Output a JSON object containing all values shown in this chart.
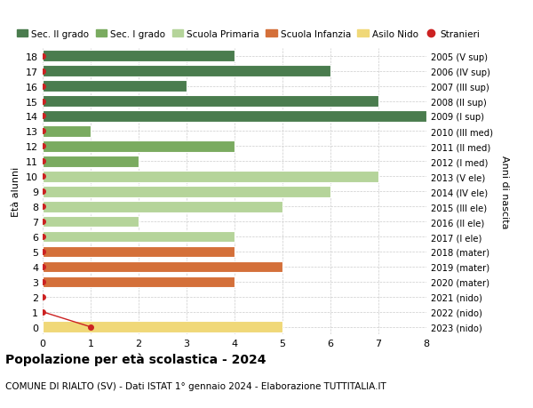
{
  "ages": [
    18,
    17,
    16,
    15,
    14,
    13,
    12,
    11,
    10,
    9,
    8,
    7,
    6,
    5,
    4,
    3,
    2,
    1,
    0
  ],
  "years": [
    "2005 (V sup)",
    "2006 (IV sup)",
    "2007 (III sup)",
    "2008 (II sup)",
    "2009 (I sup)",
    "2010 (III med)",
    "2011 (II med)",
    "2012 (I med)",
    "2013 (V ele)",
    "2014 (IV ele)",
    "2015 (III ele)",
    "2016 (II ele)",
    "2017 (I ele)",
    "2018 (mater)",
    "2019 (mater)",
    "2020 (mater)",
    "2021 (nido)",
    "2022 (nido)",
    "2023 (nido)"
  ],
  "bar_values": [
    4,
    6,
    3,
    7,
    8,
    1,
    4,
    2,
    7,
    6,
    5,
    2,
    4,
    4,
    5,
    4,
    0,
    0,
    5
  ],
  "bar_colors": [
    "#4a7c4e",
    "#4a7c4e",
    "#4a7c4e",
    "#4a7c4e",
    "#4a7c4e",
    "#7aab60",
    "#7aab60",
    "#7aab60",
    "#b5d49a",
    "#b5d49a",
    "#b5d49a",
    "#b5d49a",
    "#b5d49a",
    "#d4703a",
    "#d4703a",
    "#d4703a",
    "#f0d878",
    "#f0d878",
    "#f0d878"
  ],
  "stranieri_dots_ages": [
    18,
    17,
    16,
    15,
    14,
    13,
    12,
    11,
    10,
    9,
    8,
    7,
    6,
    5,
    4,
    3,
    2,
    1
  ],
  "stranieri_dot_x": 0,
  "stranieri_line_x": [
    0,
    1
  ],
  "stranieri_line_ages": [
    1,
    0
  ],
  "stranieri_special_dot": [
    1,
    0
  ],
  "legend_labels": [
    "Sec. II grado",
    "Sec. I grado",
    "Scuola Primaria",
    "Scuola Infanzia",
    "Asilo Nido",
    "Stranieri"
  ],
  "legend_colors": [
    "#4a7c4e",
    "#7aab60",
    "#b5d49a",
    "#d4703a",
    "#f0d878",
    "#cc2222"
  ],
  "title": "Popolazione per età scolastica - 2024",
  "subtitle": "COMUNE DI RIALTO (SV) - Dati ISTAT 1° gennaio 2024 - Elaborazione TUTTITALIA.IT",
  "ylabel_left": "Età alunni",
  "ylabel_right": "Anni di nascita",
  "xlim": [
    0,
    8
  ],
  "ylim": [
    -0.5,
    18.5
  ],
  "dot_color": "#cc2222",
  "bg_color": "#ffffff",
  "grid_color": "#cccccc",
  "bar_height": 0.75
}
